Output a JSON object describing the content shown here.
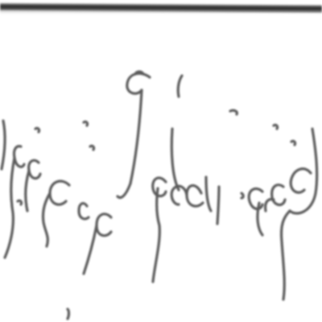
{
  "document": {
    "line_text": "بجنوبية الشرعية من جزيرة",
    "ink_color": "#4a4a4a",
    "rule_color": "#1a1a1a",
    "background": "#ffffff"
  }
}
